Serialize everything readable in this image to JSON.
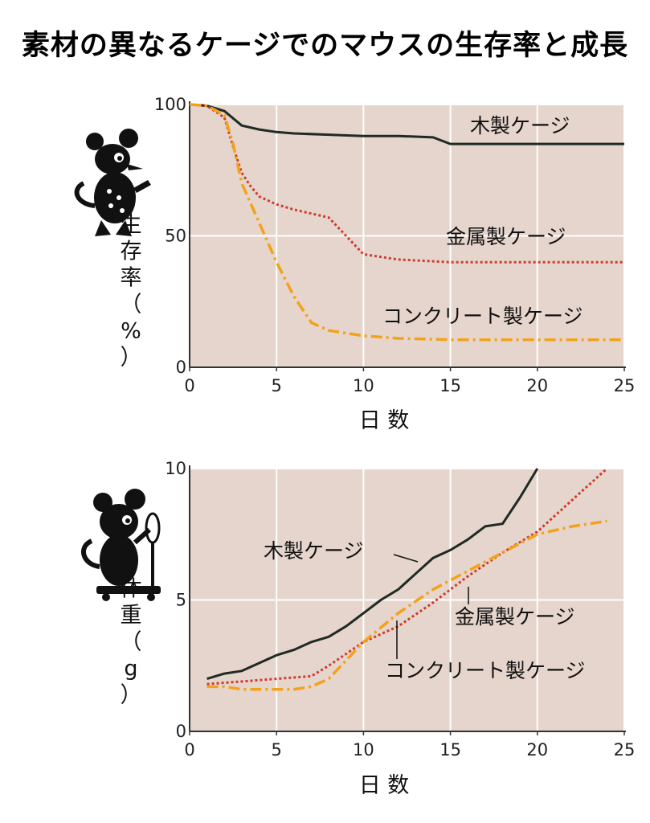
{
  "title": "素材の異なるケージでのマウスの生存率と成長",
  "colors": {
    "plot_bg": "#e5d5cc",
    "wood": "#1f2a24",
    "metal": "#cf3b2f",
    "concrete": "#f3a21a"
  },
  "icons": [
    "mouse-icon",
    "mouse-with-mirror-icon"
  ],
  "chart_data": [
    {
      "type": "line",
      "ylabel": "生存率（%）",
      "xlabel": "日 数",
      "xlim": [
        0,
        25
      ],
      "ylim": [
        0,
        100
      ],
      "x_ticks": [
        "0",
        "5",
        "10",
        "15",
        "20",
        "25"
      ],
      "y_ticks": [
        "0",
        "50",
        "100"
      ],
      "grid": true,
      "series": [
        {
          "name": "木製ケージ",
          "style": "solid",
          "x": [
            0,
            1,
            2,
            3,
            4,
            5,
            6,
            8,
            10,
            12,
            14,
            15,
            17,
            20,
            23,
            25
          ],
          "y": [
            100,
            99.5,
            97.5,
            92,
            90.5,
            89.5,
            89,
            88.5,
            88,
            88,
            87.5,
            85,
            85,
            85,
            85,
            85
          ]
        },
        {
          "name": "金属製ケージ",
          "style": "dotted",
          "x": [
            0,
            1,
            2,
            2.5,
            3,
            3.5,
            4,
            5,
            6,
            8,
            9,
            10,
            12,
            15,
            20,
            25
          ],
          "y": [
            100,
            99.5,
            95,
            84,
            74,
            69,
            65,
            62,
            60,
            57,
            50,
            43,
            41,
            40,
            40,
            40
          ]
        },
        {
          "name": "コンクリート製ケージ",
          "style": "dash-dot",
          "x": [
            0,
            1,
            2,
            2.5,
            3,
            4,
            5,
            6,
            7,
            8,
            10,
            12,
            15,
            20,
            25
          ],
          "y": [
            100,
            99.5,
            96,
            85,
            70,
            55,
            40,
            27,
            17,
            14,
            12,
            11,
            10.5,
            10.5,
            10.5
          ]
        }
      ]
    },
    {
      "type": "line",
      "ylabel": "体重（g）",
      "xlabel": "日 数",
      "xlim": [
        0,
        25
      ],
      "ylim": [
        0,
        10
      ],
      "x_ticks": [
        "0",
        "5",
        "10",
        "15",
        "20",
        "25"
      ],
      "y_ticks": [
        "0",
        "5",
        "10"
      ],
      "grid": true,
      "series": [
        {
          "name": "木製ケージ",
          "style": "solid",
          "x": [
            1,
            2,
            3,
            4,
            5,
            6,
            7,
            8,
            9,
            10,
            11,
            12,
            13,
            14,
            15,
            16,
            17,
            18,
            19,
            20
          ],
          "y": [
            2.0,
            2.2,
            2.3,
            2.6,
            2.9,
            3.1,
            3.4,
            3.6,
            4.0,
            4.5,
            5.0,
            5.4,
            6.0,
            6.6,
            6.9,
            7.3,
            7.8,
            7.9,
            8.9,
            10.0
          ]
        },
        {
          "name": "金属製ケージ",
          "style": "dotted",
          "x": [
            1,
            3,
            5,
            7,
            8,
            10,
            12,
            14,
            16,
            18,
            20,
            22,
            24
          ],
          "y": [
            1.8,
            1.9,
            2.0,
            2.1,
            2.5,
            3.4,
            4.0,
            4.9,
            5.9,
            6.8,
            7.6,
            8.8,
            10.0
          ]
        },
        {
          "name": "コンクリート製ケージ",
          "style": "dash-dot",
          "x": [
            1,
            2,
            3,
            4,
            5,
            6,
            7,
            8,
            9,
            10,
            12,
            14,
            16,
            18,
            20,
            22,
            24
          ],
          "y": [
            1.7,
            1.7,
            1.6,
            1.6,
            1.6,
            1.6,
            1.7,
            2.0,
            2.7,
            3.4,
            4.5,
            5.4,
            6.1,
            6.8,
            7.5,
            7.8,
            8.0
          ]
        }
      ]
    }
  ]
}
